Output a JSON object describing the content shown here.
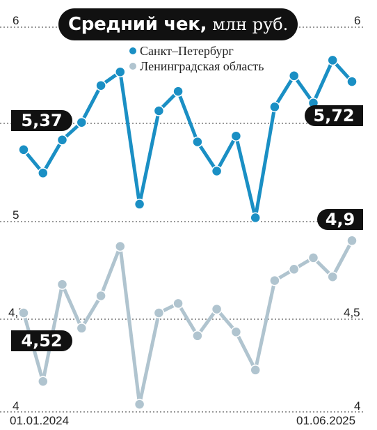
{
  "title": {
    "main": "Средний чек,",
    "unit": "млн руб."
  },
  "legend": [
    {
      "label": "Санкт–Петербург",
      "color": "#1a8fc4"
    },
    {
      "label": "Ленинградская область",
      "color": "#b0c4cf"
    }
  ],
  "axis": {
    "top_tick": "6",
    "upper_bottom_tick": "5",
    "lower_mid_tick": "4,5",
    "bottom_tick": "4",
    "x_start": "01.01.2024",
    "x_end": "01.06.2025"
  },
  "callouts": {
    "spb_start": "5,37",
    "spb_end": "5,72",
    "lo_start": "4,52",
    "lo_end": "4,9"
  },
  "chart_data": [
    {
      "type": "line",
      "x_range": [
        "01.01.2024",
        "01.06.2025"
      ],
      "ylim": [
        5,
        6
      ],
      "series": [
        {
          "name": "Санкт–Петербург",
          "color": "#1a8fc4",
          "values": [
            5.37,
            5.25,
            5.42,
            5.51,
            5.7,
            5.77,
            5.09,
            5.57,
            5.67,
            5.41,
            5.26,
            5.44,
            5.02,
            5.59,
            5.75,
            5.61,
            5.83,
            5.72
          ]
        }
      ]
    },
    {
      "type": "line",
      "x_range": [
        "01.01.2024",
        "01.06.2025"
      ],
      "ylim": [
        4,
        5
      ],
      "series": [
        {
          "name": "Ленинградская область",
          "color": "#b0c4cf",
          "values": [
            4.52,
            4.16,
            4.67,
            4.44,
            4.61,
            4.87,
            4.04,
            4.52,
            4.57,
            4.4,
            4.54,
            4.42,
            4.22,
            4.69,
            4.75,
            4.81,
            4.71,
            4.9
          ]
        }
      ]
    }
  ]
}
